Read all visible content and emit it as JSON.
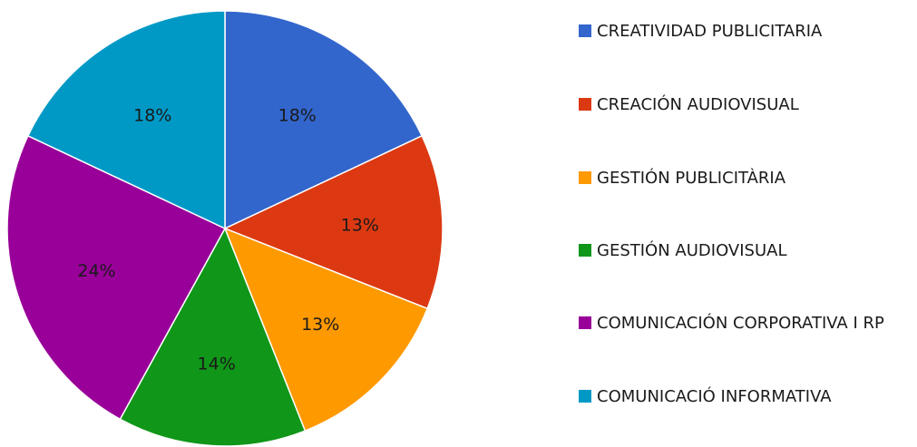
{
  "chart_data": {
    "type": "pie",
    "title": "",
    "slices": [
      {
        "label": "CREATIVIDAD PUBLICITARIA",
        "value": 18,
        "value_label": "18%",
        "color": "#3366CC"
      },
      {
        "label": "CREACIÓN AUDIOVISUAL",
        "value": 13,
        "value_label": "13%",
        "color": "#DC3912"
      },
      {
        "label": "GESTIÓN PUBLICITÀRIA",
        "value": 13,
        "value_label": "13%",
        "color": "#FF9900"
      },
      {
        "label": "GESTIÓN AUDIOVISUAL",
        "value": 14,
        "value_label": "14%",
        "color": "#109618"
      },
      {
        "label": "COMUNICACIÓN CORPORATIVA I RP",
        "value": 24,
        "value_label": "24%",
        "color": "#990099"
      },
      {
        "label": "COMUNICACIÓ INFORMATIVA",
        "value": 18,
        "value_label": "18%",
        "color": "#0099C6"
      }
    ],
    "legend_position": "right"
  }
}
